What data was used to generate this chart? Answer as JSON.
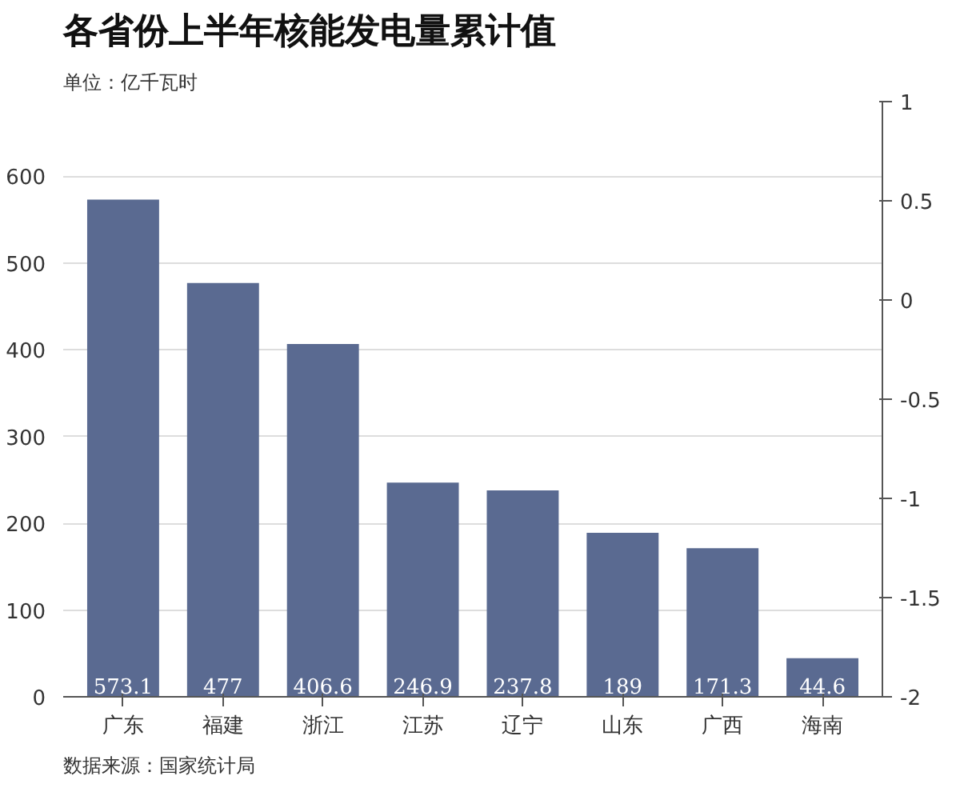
{
  "chart_data": {
    "type": "bar",
    "title": "各省份上半年核能发电量累计值",
    "ylabel": "单位：亿千瓦时",
    "categories": [
      "广东",
      "福建",
      "浙江",
      "江苏",
      "辽宁",
      "山东",
      "广西",
      "海南"
    ],
    "values": [
      573.1,
      477,
      406.6,
      246.9,
      237.8,
      189,
      171.3,
      44.6
    ],
    "color": "#5a6a91",
    "data_labels": true,
    "ylim": [
      0,
      686
    ],
    "yticks": [
      0,
      100,
      200,
      300,
      400,
      500,
      600
    ],
    "y2lim": [
      -2,
      1
    ],
    "y2ticks": [
      -2,
      -1.5,
      -1,
      -0.5,
      0,
      0.5,
      1
    ],
    "grid": "y",
    "annotations": [
      "数据来源：国家统计局"
    ]
  }
}
